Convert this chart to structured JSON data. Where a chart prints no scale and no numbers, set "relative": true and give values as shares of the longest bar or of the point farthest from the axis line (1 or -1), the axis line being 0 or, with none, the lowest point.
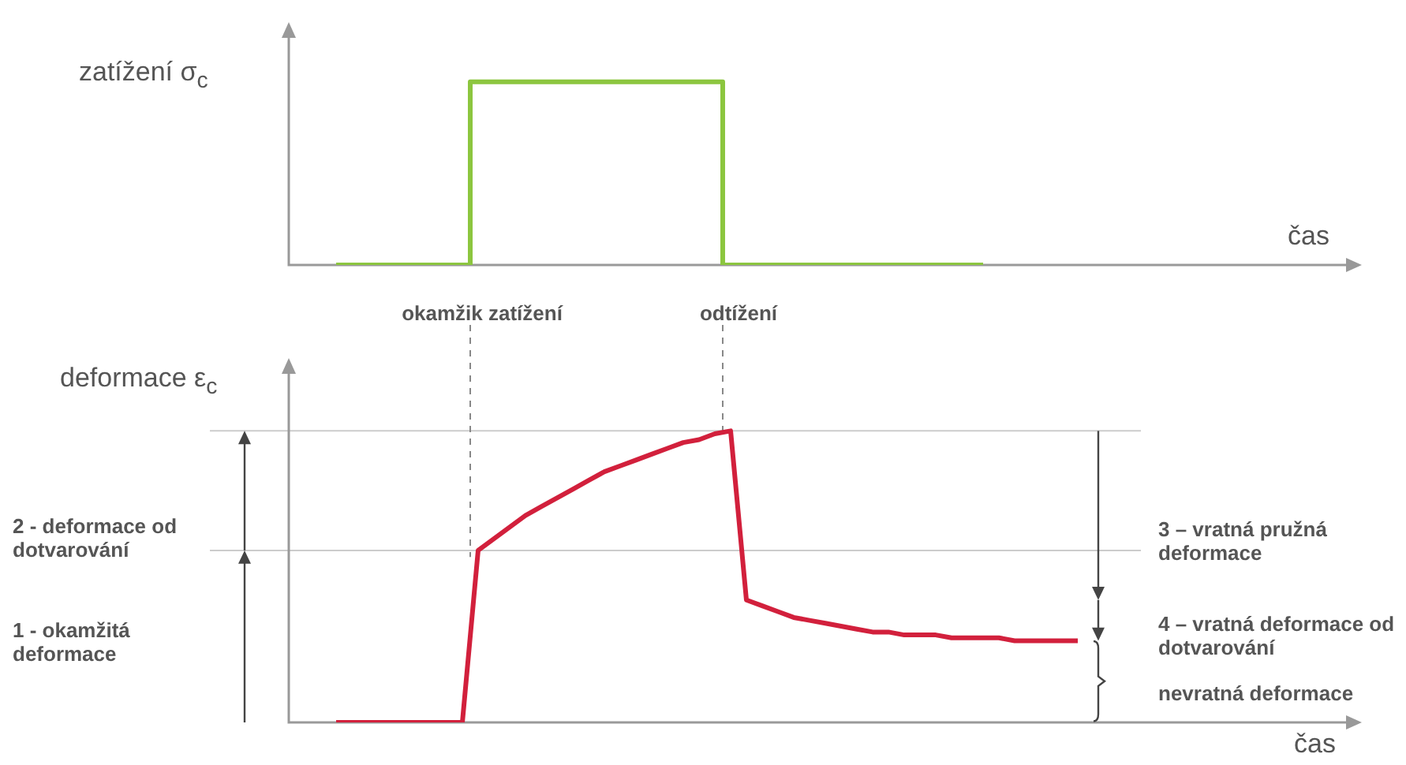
{
  "chart_data": [
    {
      "type": "step",
      "ylabel": "zatížení σ$_{c}$",
      "xlabel": "čas",
      "relative": true,
      "legend": false,
      "marker": "none",
      "categories": [
        null,
        null,
        null,
        null,
        null,
        null,
        null,
        null,
        null,
        null,
        null,
        null,
        null,
        null,
        null,
        null,
        null,
        null,
        null,
        null,
        null,
        null,
        null,
        null,
        null,
        null,
        null,
        null,
        null,
        null,
        null,
        null,
        null,
        null,
        null,
        null,
        null,
        null,
        null,
        null,
        null,
        null,
        null,
        null,
        null,
        null,
        null,
        null,
        null,
        null,
        null,
        null,
        null,
        null,
        null,
        null,
        null,
        null,
        null,
        null,
        null,
        null,
        null,
        null,
        null,
        null,
        null,
        null
      ],
      "color": "#8cc63f",
      "values": [
        null,
        null,
        null,
        0,
        0,
        0,
        0,
        0,
        0,
        0,
        0,
        0,
        1,
        1,
        1,
        1,
        1,
        1,
        1,
        1,
        1,
        1,
        1,
        1,
        1,
        1,
        1,
        1,
        0,
        0,
        0,
        0,
        0,
        0,
        0,
        0,
        0,
        0,
        0,
        0,
        0,
        0,
        0,
        0,
        0,
        null,
        null,
        null,
        null,
        null,
        null,
        null,
        null,
        null,
        null,
        null,
        null,
        null,
        null,
        null,
        null,
        null,
        null,
        null,
        null,
        null,
        null,
        null
      ],
      "annotations": [
        "okamžik zatížení",
        "odtížení"
      ]
    },
    {
      "type": "line",
      "ylabel": "deformace ε$_{c}$",
      "xlabel": "čas",
      "relative": true,
      "legend": false,
      "marker": "none",
      "categories": [
        null,
        null,
        null,
        null,
        null,
        null,
        null,
        null,
        null,
        null,
        null,
        null,
        null,
        null,
        null,
        null,
        null,
        null,
        null,
        null,
        null,
        null,
        null,
        null,
        null,
        null,
        null,
        null,
        null,
        null,
        null,
        null,
        null,
        null,
        null,
        null,
        null,
        null,
        null,
        null,
        null,
        null,
        null,
        null,
        null,
        null,
        null,
        null,
        null,
        null,
        null,
        null,
        null,
        null,
        null,
        null,
        null,
        null,
        null,
        null,
        null,
        null,
        null,
        null,
        null,
        null,
        null,
        null
      ],
      "color": "#d2203c",
      "values": [
        null,
        null,
        null,
        0,
        0,
        0,
        0,
        0,
        0,
        0,
        0,
        0,
        0.59,
        0.63,
        0.67,
        0.71,
        0.74,
        0.77,
        0.8,
        0.83,
        0.86,
        0.88,
        0.9,
        0.92,
        0.94,
        0.96,
        0.97,
        0.99,
        1,
        0.42,
        0.4,
        0.38,
        0.36,
        0.35,
        0.34,
        0.33,
        0.32,
        0.31,
        0.31,
        0.3,
        0.3,
        0.3,
        0.29,
        0.29,
        0.29,
        0.29,
        0.28,
        0.28,
        0.28,
        0.28,
        0.28,
        null,
        null,
        null,
        null,
        null,
        null,
        null,
        null,
        null,
        null,
        null,
        null,
        null,
        null,
        null,
        null,
        null
      ],
      "ref_lines": [
        {
          "axis": "y",
          "value": 1,
          "color": "#cccccc"
        },
        {
          "axis": "y",
          "value": 0.59,
          "color": "#cccccc"
        }
      ],
      "annotations": [
        "2 - deformace od dotvarování",
        "1 - okamžitá deformace",
        "3 – vratná pružná deformace",
        "4 – vratná deformace od dotvarování",
        "nevratná deformace"
      ]
    }
  ]
}
